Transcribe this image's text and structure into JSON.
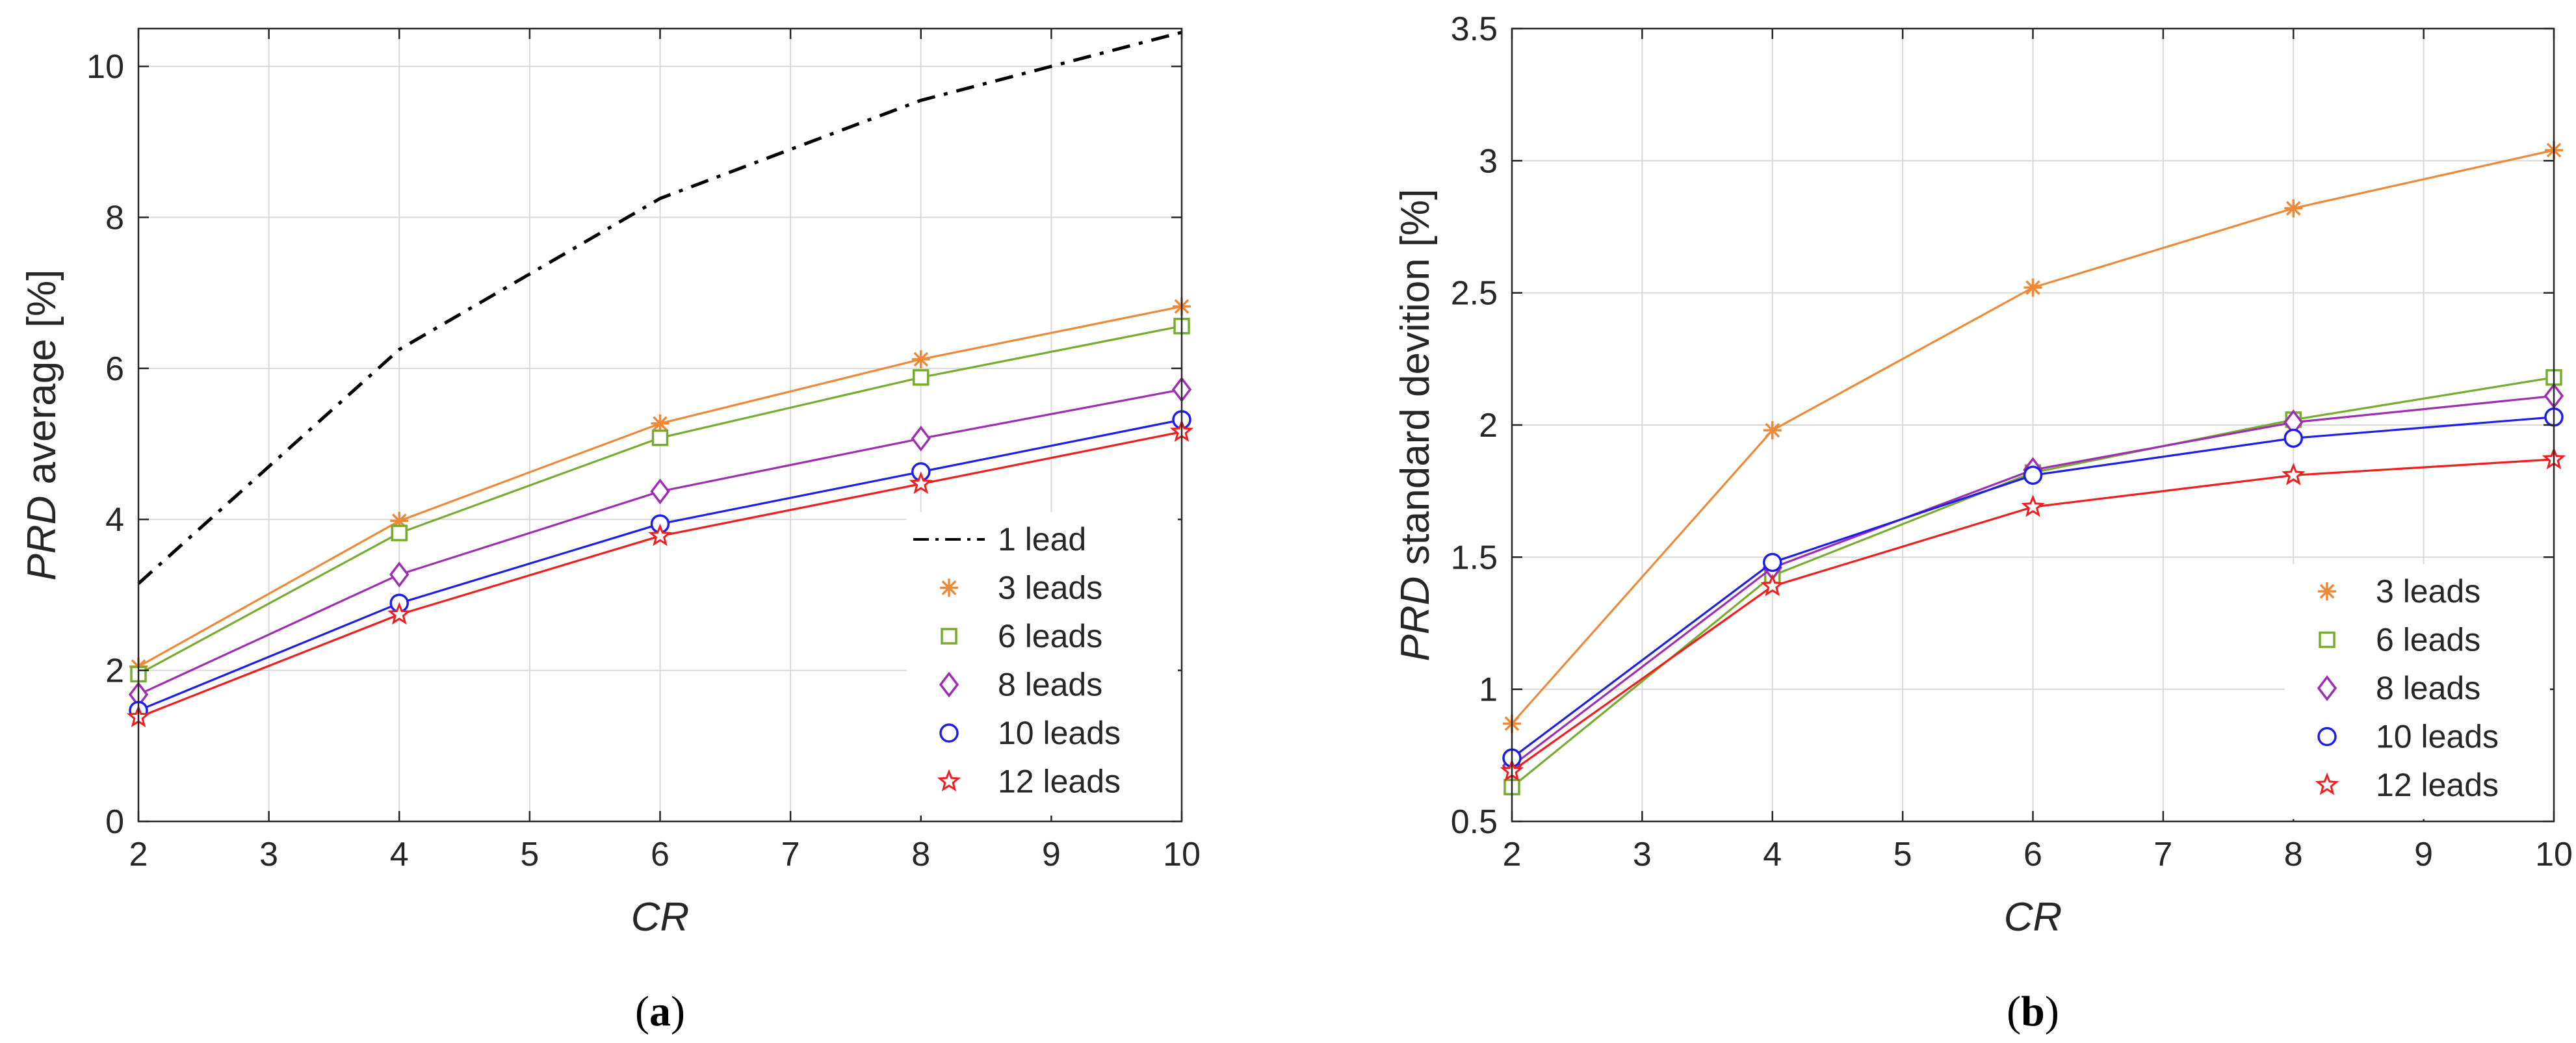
{
  "chart_data": [
    {
      "id": "a",
      "type": "line",
      "caption_letter": "a",
      "xlabel": "CR",
      "ylabel_italic": "PRD",
      "ylabel_rest": " average [%]",
      "xlim": [
        2,
        10
      ],
      "ylim": [
        0,
        10.5
      ],
      "xticks": [
        2,
        3,
        4,
        5,
        6,
        7,
        8,
        9,
        10
      ],
      "yticks": [
        0,
        2,
        4,
        6,
        8,
        10
      ],
      "grid": true,
      "legend_position": "bottom-right",
      "x": [
        2,
        4,
        6,
        8,
        10
      ],
      "series": [
        {
          "name": "1 lead",
          "color": "#000000",
          "marker": "none",
          "dash": "dashdot",
          "values": [
            3.15,
            6.25,
            8.25,
            9.55,
            10.45
          ]
        },
        {
          "name": "3 leads",
          "color": "#ED8A3A",
          "marker": "asterisk",
          "values": [
            2.05,
            3.98,
            5.27,
            6.12,
            6.82
          ]
        },
        {
          "name": "6 leads",
          "color": "#77AC30",
          "marker": "square",
          "values": [
            1.95,
            3.82,
            5.08,
            5.88,
            6.56
          ]
        },
        {
          "name": "8 leads",
          "color": "#9E2FB0",
          "marker": "diamond",
          "values": [
            1.68,
            3.27,
            4.37,
            5.07,
            5.72
          ]
        },
        {
          "name": "10 leads",
          "color": "#1E1EEB",
          "marker": "circle",
          "values": [
            1.47,
            2.89,
            3.94,
            4.63,
            5.32
          ]
        },
        {
          "name": "12 leads",
          "color": "#F21D1D",
          "marker": "star",
          "values": [
            1.38,
            2.74,
            3.78,
            4.47,
            5.16
          ]
        }
      ]
    },
    {
      "id": "b",
      "type": "line",
      "caption_letter": "b",
      "xlabel": "CR",
      "ylabel_italic": "PRD",
      "ylabel_rest": " standard devition [%]",
      "xlim": [
        2,
        10
      ],
      "ylim": [
        0.5,
        3.5
      ],
      "xticks": [
        2,
        3,
        4,
        5,
        6,
        7,
        8,
        9,
        10
      ],
      "yticks": [
        0.5,
        1,
        1.5,
        2,
        2.5,
        3,
        3.5
      ],
      "grid": true,
      "legend_position": "bottom-right",
      "x": [
        2,
        4,
        6,
        8,
        10
      ],
      "series": [
        {
          "name": "3 leads",
          "color": "#ED8A3A",
          "marker": "asterisk",
          "values": [
            0.87,
            1.98,
            2.52,
            2.82,
            3.04
          ]
        },
        {
          "name": "6 leads",
          "color": "#77AC30",
          "marker": "square",
          "values": [
            0.63,
            1.43,
            1.82,
            2.02,
            2.18
          ]
        },
        {
          "name": "8 leads",
          "color": "#9E2FB0",
          "marker": "diamond",
          "values": [
            0.71,
            1.46,
            1.83,
            2.01,
            2.11
          ]
        },
        {
          "name": "10 leads",
          "color": "#1E1EEB",
          "marker": "circle",
          "values": [
            0.74,
            1.48,
            1.81,
            1.95,
            2.03
          ]
        },
        {
          "name": "12 leads",
          "color": "#F21D1D",
          "marker": "star",
          "values": [
            0.69,
            1.39,
            1.69,
            1.81,
            1.87
          ]
        }
      ]
    }
  ]
}
